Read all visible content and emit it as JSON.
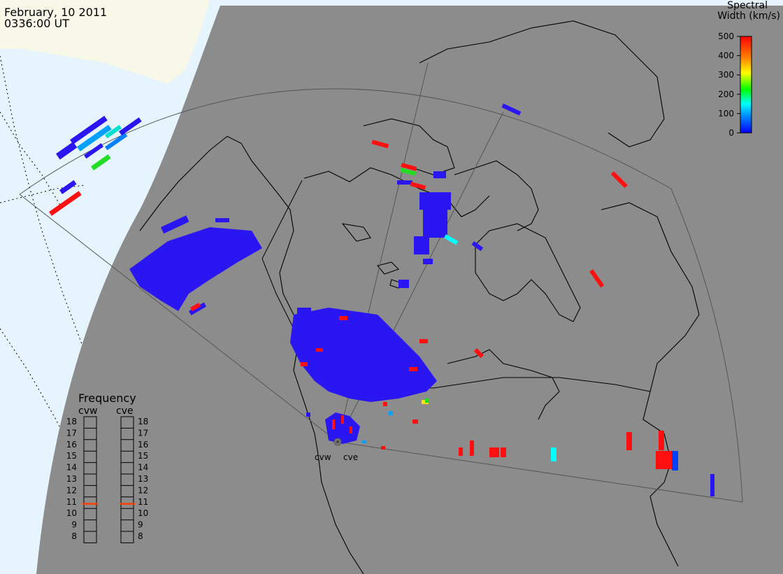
{
  "header": {
    "date": "February, 10 2011",
    "time": "0336:00 UT"
  },
  "colorbar": {
    "title_line1": "Spectral",
    "title_line2": "Width (km/s)",
    "ticks": [
      "500",
      "400",
      "300",
      "200",
      "100",
      "0"
    ],
    "range": [
      0,
      500
    ],
    "colors": [
      "#0000ff",
      "#00a0ff",
      "#00ffff",
      "#00ff00",
      "#ffff00",
      "#ff8000",
      "#ff0000"
    ]
  },
  "frequency": {
    "title": "Frequency",
    "radars": [
      {
        "name": "cvw",
        "value_mhz": 10.9
      },
      {
        "name": "cve",
        "value_mhz": 10.9
      }
    ],
    "scale": [
      "18",
      "17",
      "16",
      "15",
      "14",
      "13",
      "12",
      "11",
      "10",
      "9",
      "8"
    ],
    "marker_color": "#ff4000"
  },
  "radar_sites": [
    {
      "label": "cvw"
    },
    {
      "label": "cve"
    }
  ],
  "colors": {
    "land_daylight": "#f8f8e8",
    "ocean_daylight": "#e6f5fd",
    "night_shade": "#8c8c8c",
    "coastline": "#000000",
    "fov_outline": "#555555"
  }
}
